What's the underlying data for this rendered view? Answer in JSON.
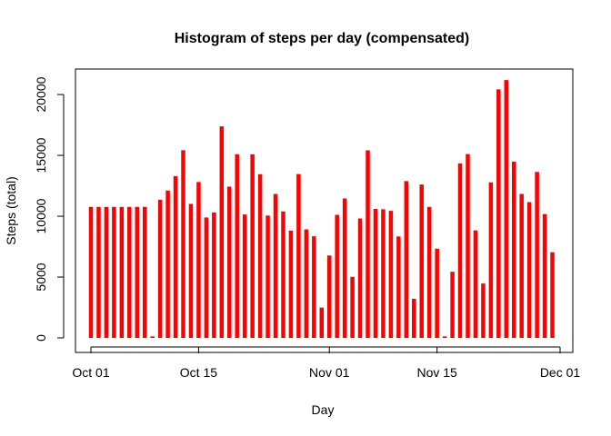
{
  "chart_data": {
    "type": "bar",
    "title": "Histogram of steps per day (compensated)",
    "xlabel": "Day",
    "ylabel": "Steps (total)",
    "bar_color": "#ff0000",
    "x_start": "2012-10-01",
    "x_ticks": [
      {
        "label": "Oct 01",
        "date": "2012-10-01"
      },
      {
        "label": "Oct 15",
        "date": "2012-10-15"
      },
      {
        "label": "Nov 01",
        "date": "2012-11-01"
      },
      {
        "label": "Nov 15",
        "date": "2012-11-15"
      },
      {
        "label": "Dec 01",
        "date": "2012-12-01"
      }
    ],
    "yticks": [
      0,
      5000,
      10000,
      15000,
      20000
    ],
    "ytick_labels": [
      "0",
      "5000",
      "10000",
      "15000",
      "20000"
    ],
    "ylim": [
      0,
      21200
    ],
    "xlim": [
      "2012-09-29",
      "2012-12-01"
    ],
    "values": [
      10766,
      10766,
      10766,
      10766,
      10766,
      10766,
      10766,
      10766,
      126,
      11352,
      12116,
      13294,
      15420,
      11015,
      12811,
      9900,
      10304,
      17382,
      12426,
      15098,
      10139,
      15084,
      13452,
      10056,
      11829,
      10395,
      8821,
      13460,
      8918,
      8355,
      2492,
      6778,
      10119,
      11458,
      5018,
      9819,
      15414,
      10600,
      10571,
      10439,
      8334,
      12883,
      3219,
      12608,
      10765,
      7336,
      126,
      5441,
      14339,
      15110,
      8841,
      4472,
      12787,
      20427,
      21194,
      14478,
      11834,
      11162,
      13646,
      10183,
      7047
    ]
  }
}
